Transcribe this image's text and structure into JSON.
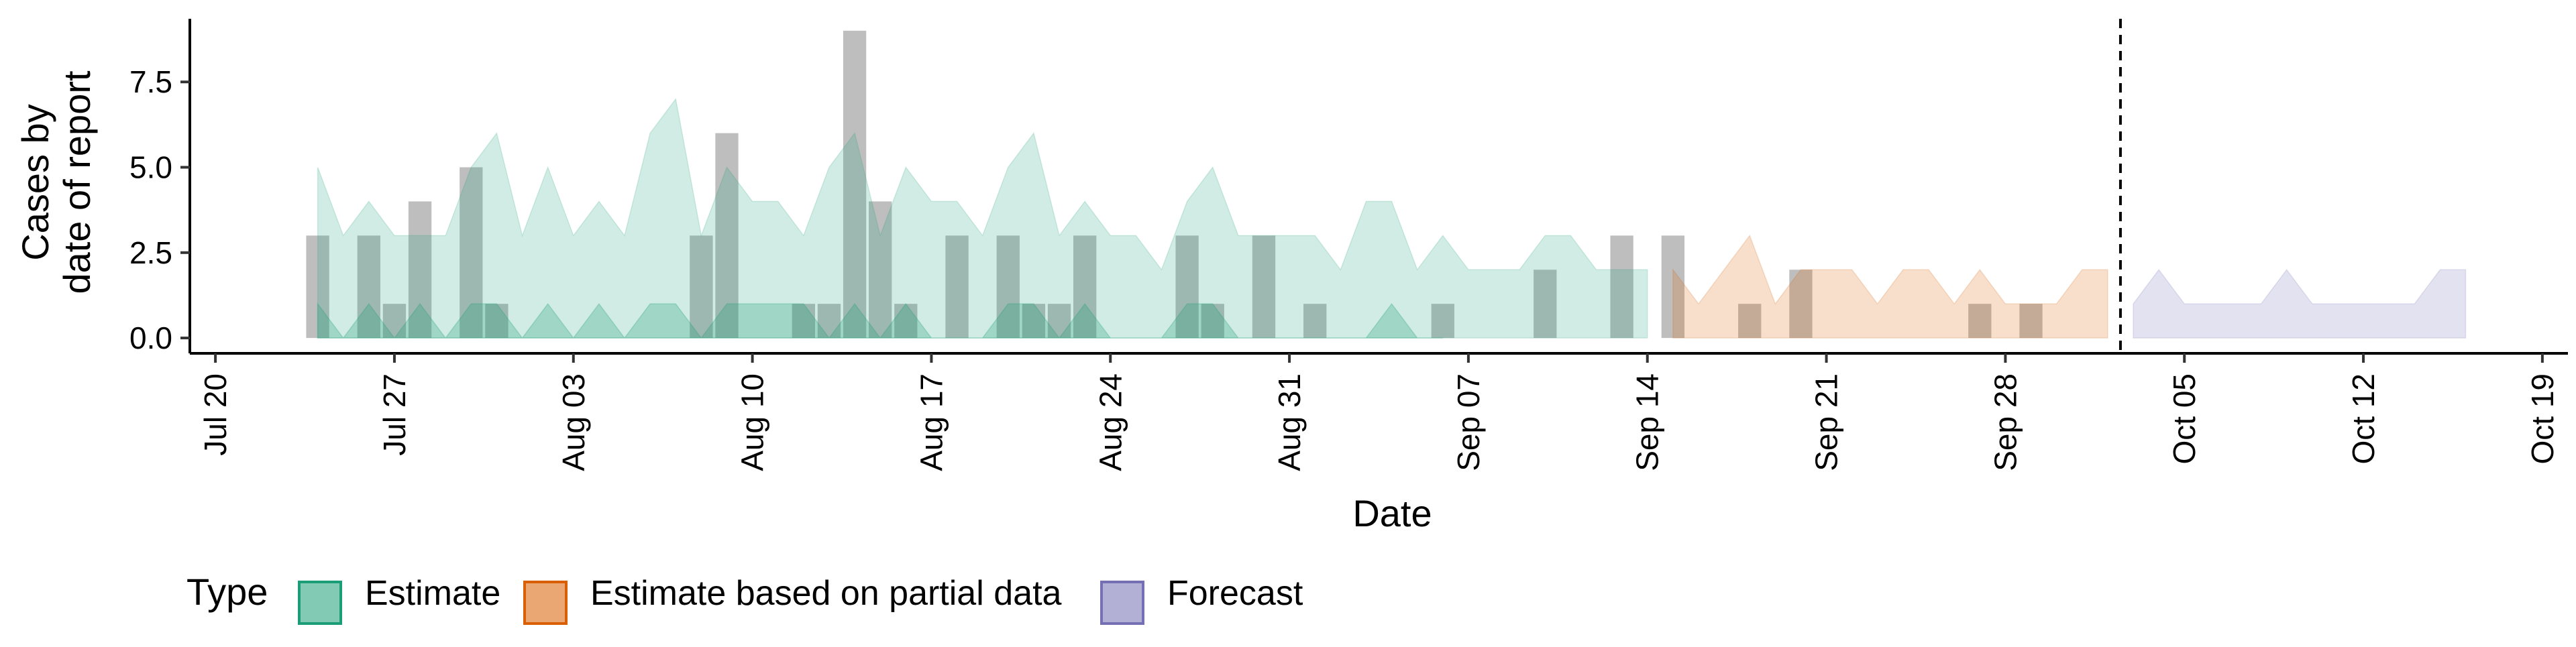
{
  "chart_data": {
    "type": "area",
    "title": "",
    "xlabel": "Date",
    "ylabel": [
      "Cases by",
      "date of report"
    ],
    "x_start": "2020-07-20",
    "xlim": [
      "2020-07-19",
      "2020-10-20"
    ],
    "ylim": [
      -0.45,
      9.35
    ],
    "x_tick_labels": [
      "Jul 20",
      "Jul 27",
      "Aug 03",
      "Aug 10",
      "Aug 17",
      "Aug 24",
      "Aug 31",
      "Sep 07",
      "Sep 14",
      "Sep 21",
      "Sep 28",
      "Oct 05",
      "Oct 12",
      "Oct 19"
    ],
    "y_ticks": [
      0.0,
      2.5,
      5.0,
      7.5
    ],
    "y_tick_labels": [
      "0.0",
      "2.5",
      "5.0",
      "7.5"
    ],
    "forecast_cutoff_date": "2020-10-02",
    "legend": {
      "title": "Type",
      "position": "bottom",
      "items": [
        {
          "label": "Estimate",
          "fill": "#1b9e77"
        },
        {
          "label": "Estimate based on partial data",
          "fill": "#d95f02"
        },
        {
          "label": "Forecast",
          "fill": "#7570b3"
        }
      ]
    },
    "observed_cases": [
      {
        "date": "2020-07-24",
        "value": 3
      },
      {
        "date": "2020-07-26",
        "value": 3
      },
      {
        "date": "2020-07-27",
        "value": 1
      },
      {
        "date": "2020-07-28",
        "value": 4
      },
      {
        "date": "2020-07-30",
        "value": 5
      },
      {
        "date": "2020-07-31",
        "value": 1
      },
      {
        "date": "2020-08-08",
        "value": 3
      },
      {
        "date": "2020-08-09",
        "value": 6
      },
      {
        "date": "2020-08-12",
        "value": 1
      },
      {
        "date": "2020-08-13",
        "value": 1
      },
      {
        "date": "2020-08-14",
        "value": 9
      },
      {
        "date": "2020-08-15",
        "value": 4
      },
      {
        "date": "2020-08-16",
        "value": 1
      },
      {
        "date": "2020-08-18",
        "value": 3
      },
      {
        "date": "2020-08-20",
        "value": 3
      },
      {
        "date": "2020-08-21",
        "value": 1
      },
      {
        "date": "2020-08-22",
        "value": 1
      },
      {
        "date": "2020-08-23",
        "value": 3
      },
      {
        "date": "2020-08-27",
        "value": 3
      },
      {
        "date": "2020-08-28",
        "value": 1
      },
      {
        "date": "2020-08-30",
        "value": 3
      },
      {
        "date": "2020-09-01",
        "value": 1
      },
      {
        "date": "2020-09-06",
        "value": 1
      },
      {
        "date": "2020-09-10",
        "value": 2
      },
      {
        "date": "2020-09-13",
        "value": 3
      },
      {
        "date": "2020-09-15",
        "value": 3
      },
      {
        "date": "2020-09-18",
        "value": 1
      },
      {
        "date": "2020-09-20",
        "value": 2
      },
      {
        "date": "2020-09-27",
        "value": 1
      },
      {
        "date": "2020-09-29",
        "value": 1
      }
    ],
    "series": [
      {
        "name": "Estimate",
        "inner": {
          "dates": [
            "2020-07-24",
            "2020-07-25",
            "2020-07-26",
            "2020-07-27",
            "2020-07-28",
            "2020-07-29",
            "2020-07-30",
            "2020-07-31",
            "2020-08-01",
            "2020-08-02",
            "2020-08-03",
            "2020-08-04",
            "2020-08-05",
            "2020-08-06",
            "2020-08-07",
            "2020-08-08",
            "2020-08-09",
            "2020-08-10",
            "2020-08-11",
            "2020-08-12",
            "2020-08-13",
            "2020-08-14",
            "2020-08-15",
            "2020-08-16",
            "2020-08-17",
            "2020-08-18",
            "2020-08-19",
            "2020-08-20",
            "2020-08-21",
            "2020-08-22",
            "2020-08-23",
            "2020-08-24",
            "2020-08-25",
            "2020-08-26",
            "2020-08-27",
            "2020-08-28",
            "2020-08-29",
            "2020-08-30",
            "2020-08-31",
            "2020-09-01",
            "2020-09-02",
            "2020-09-03",
            "2020-09-04",
            "2020-09-05",
            "2020-09-06"
          ],
          "upper": [
            1,
            0,
            1,
            0,
            1,
            0,
            1,
            1,
            0,
            1,
            0,
            1,
            0,
            1,
            1,
            0,
            1,
            1,
            1,
            1,
            0,
            1,
            0,
            1,
            0,
            0,
            0,
            1,
            1,
            0,
            1,
            0,
            0,
            0,
            1,
            1,
            0,
            0,
            0,
            0,
            0,
            0,
            1,
            0,
            0
          ]
        },
        "dates": [
          "2020-07-24",
          "2020-07-25",
          "2020-07-26",
          "2020-07-27",
          "2020-07-28",
          "2020-07-29",
          "2020-07-30",
          "2020-07-31",
          "2020-08-01",
          "2020-08-02",
          "2020-08-03",
          "2020-08-04",
          "2020-08-05",
          "2020-08-06",
          "2020-08-07",
          "2020-08-08",
          "2020-08-09",
          "2020-08-10",
          "2020-08-11",
          "2020-08-12",
          "2020-08-13",
          "2020-08-14",
          "2020-08-15",
          "2020-08-16",
          "2020-08-17",
          "2020-08-18",
          "2020-08-19",
          "2020-08-20",
          "2020-08-21",
          "2020-08-22",
          "2020-08-23",
          "2020-08-24",
          "2020-08-25",
          "2020-08-26",
          "2020-08-27",
          "2020-08-28",
          "2020-08-29",
          "2020-08-30",
          "2020-08-31",
          "2020-09-01",
          "2020-09-02",
          "2020-09-03",
          "2020-09-04",
          "2020-09-05",
          "2020-09-06",
          "2020-09-07",
          "2020-09-08",
          "2020-09-09",
          "2020-09-10",
          "2020-09-11",
          "2020-09-12",
          "2020-09-13",
          "2020-09-14"
        ],
        "upper": [
          5,
          3,
          4,
          3,
          3,
          3,
          5,
          6,
          3,
          5,
          3,
          4,
          3,
          6,
          7,
          3,
          5,
          4,
          4,
          3,
          5,
          6,
          3,
          5,
          4,
          4,
          3,
          5,
          6,
          3,
          4,
          3,
          3,
          2,
          4,
          5,
          3,
          3,
          3,
          3,
          2,
          4,
          4,
          2,
          3,
          2,
          2,
          2,
          3,
          3,
          2,
          2,
          2
        ],
        "lower": [
          0,
          0,
          0,
          0,
          0,
          0,
          0,
          0,
          0,
          0,
          0,
          0,
          0,
          0,
          0,
          0,
          0,
          0,
          0,
          0,
          0,
          0,
          0,
          0,
          0,
          0,
          0,
          0,
          0,
          0,
          0,
          0,
          0,
          0,
          0,
          0,
          0,
          0,
          0,
          0,
          0,
          0,
          0,
          0,
          0,
          0,
          0,
          0,
          0,
          0,
          0,
          0,
          0
        ]
      },
      {
        "name": "Estimate based on partial data",
        "dates": [
          "2020-09-15",
          "2020-09-16",
          "2020-09-17",
          "2020-09-18",
          "2020-09-19",
          "2020-09-20",
          "2020-09-21",
          "2020-09-22",
          "2020-09-23",
          "2020-09-24",
          "2020-09-25",
          "2020-09-26",
          "2020-09-27",
          "2020-09-28",
          "2020-09-29",
          "2020-09-30",
          "2020-10-01",
          "2020-10-02"
        ],
        "upper": [
          2,
          1,
          2,
          3,
          1,
          2,
          2,
          2,
          1,
          2,
          2,
          1,
          2,
          1,
          1,
          1,
          2,
          2
        ],
        "lower": [
          0,
          0,
          0,
          0,
          0,
          0,
          0,
          0,
          0,
          0,
          0,
          0,
          0,
          0,
          0,
          0,
          0,
          0
        ]
      },
      {
        "name": "Forecast",
        "dates": [
          "2020-10-03",
          "2020-10-04",
          "2020-10-05",
          "2020-10-06",
          "2020-10-07",
          "2020-10-08",
          "2020-10-09",
          "2020-10-10",
          "2020-10-11",
          "2020-10-12",
          "2020-10-13",
          "2020-10-14",
          "2020-10-15",
          "2020-10-16"
        ],
        "upper": [
          1,
          2,
          1,
          1,
          1,
          1,
          2,
          1,
          1,
          1,
          1,
          1,
          2,
          2
        ],
        "lower": [
          0,
          0,
          0,
          0,
          0,
          0,
          0,
          0,
          0,
          0,
          0,
          0,
          0,
          0
        ]
      }
    ]
  }
}
